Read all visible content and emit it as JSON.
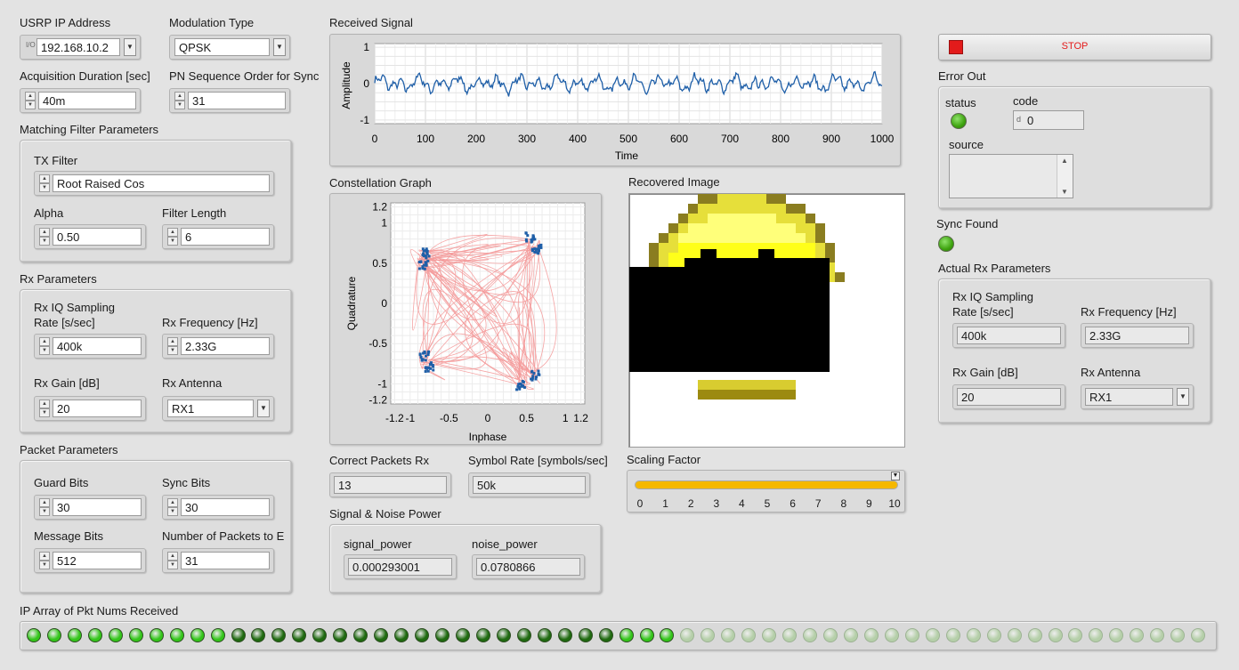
{
  "usrp_ip": {
    "label": "USRP IP Address",
    "value": "192.168.10.2",
    "io_glyph": "I/O"
  },
  "modulation": {
    "label": "Modulation Type",
    "value": "QPSK"
  },
  "acq_duration": {
    "label": "Acquisition Duration [sec]",
    "value": "40m"
  },
  "pn_order": {
    "label": "PN Sequence Order for Sync",
    "value": "31"
  },
  "matching_filter": {
    "title": "Matching Filter Parameters",
    "tx_filter_label": "TX Filter",
    "tx_filter_value": "Root Raised Cos",
    "alpha_label": "Alpha",
    "alpha_value": "0.50",
    "filter_length_label": "Filter Length",
    "filter_length_value": "6"
  },
  "rx_params": {
    "title": "Rx Parameters",
    "rate_label_1": "Rx IQ Sampling",
    "rate_label_2": "Rate [s/sec]",
    "rate_value": "400k",
    "freq_label": "Rx Frequency [Hz]",
    "freq_value": "2.33G",
    "gain_label": "Rx Gain [dB]",
    "gain_value": "20",
    "antenna_label": "Rx Antenna",
    "antenna_value": "RX1"
  },
  "packet_params": {
    "title": "Packet Parameters",
    "guard_label": "Guard Bits",
    "guard_value": "30",
    "sync_label": "Sync Bits",
    "sync_value": "30",
    "message_label": "Message Bits",
    "message_value": "512",
    "num_packets_label": "Number of Packets to E",
    "num_packets_value": "31"
  },
  "received_signal": {
    "title": "Received Signal",
    "xlabel": "Time",
    "ylabel": "Amplitude",
    "x_ticks": [
      "0",
      "100",
      "200",
      "300",
      "400",
      "500",
      "600",
      "700",
      "800",
      "900",
      "1000"
    ],
    "y_ticks": [
      "1",
      "0",
      "-1"
    ],
    "line_color": "#1f5fa8"
  },
  "constellation": {
    "title": "Constellation Graph",
    "xlabel": "Inphase",
    "ylabel": "Quadrature",
    "x_ticks": [
      "-1.2",
      "-1",
      "-0.5",
      "0",
      "0.5",
      "1",
      "1.2"
    ],
    "y_ticks": [
      "1.2",
      "1",
      "0.5",
      "0",
      "-0.5",
      "-1",
      "-1.2"
    ],
    "trace_color": "#f49a9a",
    "point_color": "#1f5fa8"
  },
  "recovered_image": {
    "title": "Recovered Image"
  },
  "correct_packets": {
    "label": "Correct Packets Rx",
    "value": "13"
  },
  "symbol_rate": {
    "label": "Symbol Rate [symbols/sec]",
    "value": "50k"
  },
  "signal_noise": {
    "title": "Signal & Noise Power",
    "signal_label": "signal_power",
    "signal_value": "0.000293001",
    "noise_label": "noise_power",
    "noise_value": "0.0780866"
  },
  "scaling_factor": {
    "label": "Scaling Factor",
    "ticks": [
      "0",
      "1",
      "2",
      "3",
      "4",
      "5",
      "6",
      "7",
      "8",
      "9",
      "10"
    ],
    "value": 10,
    "max": 10,
    "fill_color": "#f5b800"
  },
  "stop_button": {
    "label": "STOP",
    "color": "#e31b1b"
  },
  "error_out": {
    "title": "Error Out",
    "status_label": "status",
    "code_label": "code",
    "code_value": "0",
    "code_glyph": "d",
    "source_label": "source",
    "source_value": ""
  },
  "sync_found": {
    "label": "Sync Found"
  },
  "actual_rx": {
    "title": "Actual Rx Parameters",
    "rate_label_1": "Rx IQ Sampling",
    "rate_label_2": "Rate [s/sec]",
    "rate_value": "400k",
    "freq_label": "Rx Frequency [Hz]",
    "freq_value": "2.33G",
    "gain_label": "Rx Gain [dB]",
    "gain_value": "20",
    "antenna_label": "Rx Antenna",
    "antenna_value": "RX1"
  },
  "pkt_array": {
    "label": "IP Array of Pkt Nums Received",
    "total": 58,
    "states": [
      "bright",
      "bright",
      "bright",
      "bright",
      "bright",
      "bright",
      "bright",
      "bright",
      "bright",
      "bright",
      "dark",
      "dark",
      "dark",
      "dark",
      "dark",
      "dark",
      "dark",
      "dark",
      "dark",
      "dark",
      "dark",
      "dark",
      "dark",
      "dark",
      "dark",
      "dark",
      "dark",
      "dark",
      "dark",
      "bright",
      "bright",
      "bright"
    ],
    "colors": {
      "bright": "#33c51a",
      "dark": "#1f6a10",
      "off": "#b5cfa9"
    }
  },
  "icons": {
    "spin_up": "▲",
    "spin_down": "▼",
    "ring_dropdown": "▼",
    "scroll_up": "▲",
    "scroll_down": "▼"
  }
}
